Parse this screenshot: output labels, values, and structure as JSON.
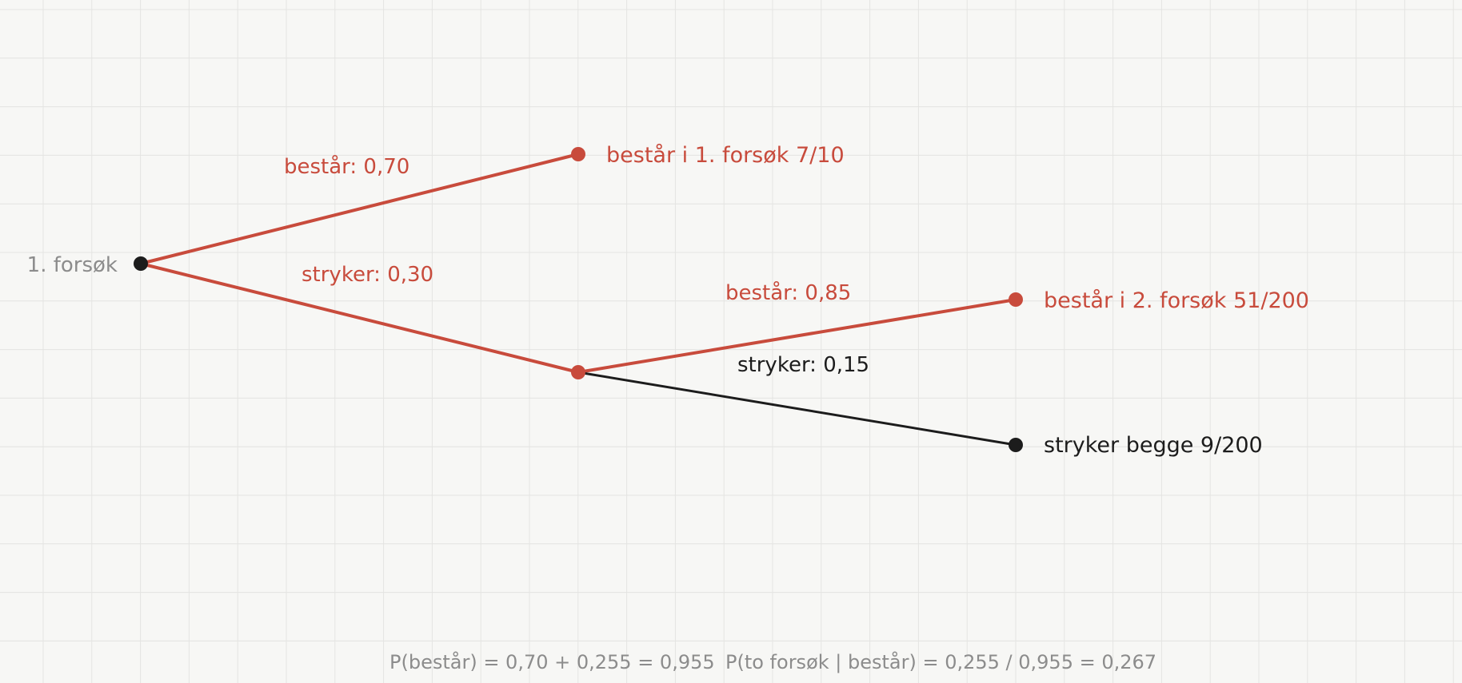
{
  "colors": {
    "background": "#f7f7f5",
    "grid": "#e4e4e2",
    "accent": "#c84b3c",
    "dark": "#1c1c1c",
    "muted": "#8c8c8c"
  },
  "tree": {
    "root_label": "1. forsøk",
    "branch_pass1": "består: 0,70",
    "branch_fail1": "stryker: 0,30",
    "branch_pass2": "består: 0,85",
    "branch_fail2": "stryker: 0,15",
    "outcome_pass1": "består i 1. forsøk  7/10",
    "outcome_pass2": "består i 2. forsøk  51/200",
    "outcome_fail_both": "stryker begge  9/200"
  },
  "footer": {
    "p_pass": "P(består) = 0,70 + 0,255 = 0,955",
    "p_two_given_pass": "P(to forsøk | består) = 0,255 / 0,955 = 0,267"
  }
}
